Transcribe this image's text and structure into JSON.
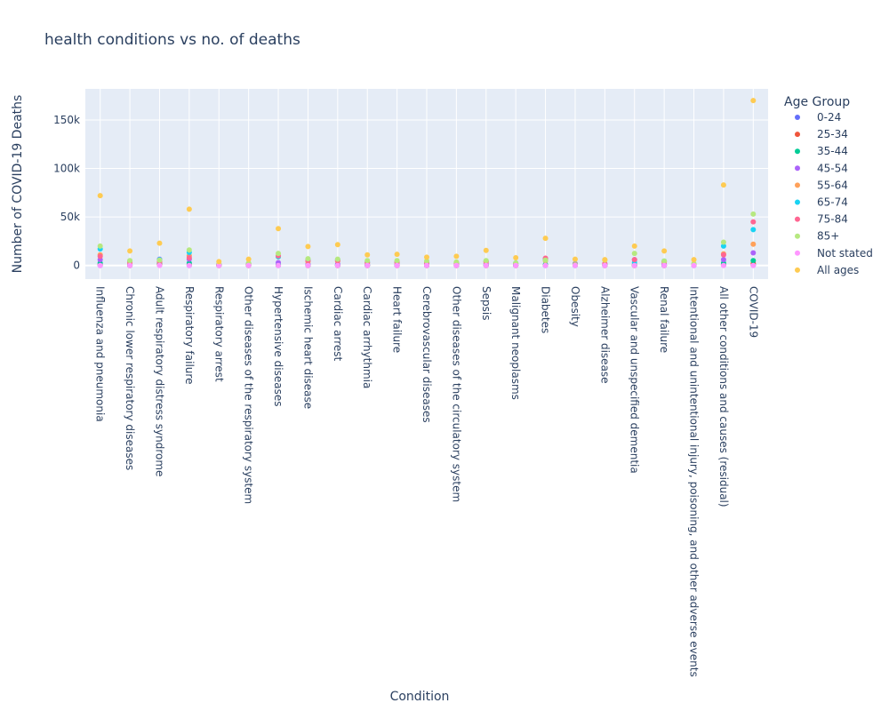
{
  "chart_data": {
    "type": "scatter",
    "title": "health conditions vs no. of deaths",
    "xlabel": "Condition",
    "ylabel": "Number of COVID-19 Deaths",
    "ylim": [
      -14000,
      182000
    ],
    "yticks": [
      0,
      50000,
      100000,
      150000
    ],
    "ytick_labels": [
      "0",
      "50k",
      "100k",
      "150k"
    ],
    "grid": true,
    "legend_title": "Age Group",
    "legend_position": "top-right",
    "categories": [
      "Influenza and pneumonia",
      "Chronic lower respiratory diseases",
      "Adult respiratory distress syndrome",
      "Respiratory failure",
      "Respiratory arrest",
      "Other diseases of the respiratory system",
      "Hypertensive diseases",
      "Ischemic heart disease",
      "Cardiac arrest",
      "Cardiac arrhythmia",
      "Heart failure",
      "Cerebrovascular diseases",
      "Other diseases of the circulatory system",
      "Sepsis",
      "Malignant neoplasms",
      "Diabetes",
      "Obesity",
      "Alzheimer disease",
      "Vascular and unspecified dementia",
      "Renal failure",
      "Intentional and unintentional injury, poisoning, and other adverse events",
      "All other conditions and causes (residual)",
      "COVID-19"
    ],
    "series": [
      {
        "name": "0-24",
        "color": "#636efa",
        "values": [
          0,
          0,
          500,
          0,
          0,
          0,
          0,
          0,
          0,
          0,
          0,
          0,
          0,
          0,
          0,
          0,
          0,
          0,
          0,
          0,
          0,
          300,
          500
        ]
      },
      {
        "name": "25-34",
        "color": "#EF553B",
        "values": [
          1000,
          0,
          1500,
          1000,
          0,
          0,
          300,
          0,
          0,
          0,
          0,
          0,
          0,
          0,
          0,
          300,
          300,
          0,
          0,
          0,
          300,
          1000,
          2000
        ]
      },
      {
        "name": "35-44",
        "color": "#00cc96",
        "values": [
          2500,
          500,
          3000,
          2500,
          300,
          300,
          900,
          300,
          500,
          300,
          300,
          300,
          300,
          500,
          300,
          900,
          900,
          300,
          300,
          300,
          500,
          2500,
          5000
        ]
      },
      {
        "name": "45-54",
        "color": "#ab63fa",
        "values": [
          6000,
          1000,
          6500,
          6500,
          500,
          600,
          3000,
          1500,
          1500,
          900,
          700,
          700,
          800,
          1800,
          800,
          7000,
          1800,
          600,
          6000,
          1500,
          800,
          6000,
          13000
        ]
      },
      {
        "name": "55-64",
        "color": "#FFA15A",
        "values": [
          11000,
          2500,
          3800,
          10000,
          1000,
          1500,
          9000,
          4000,
          4500,
          2500,
          2500,
          1800,
          2000,
          3500,
          2000,
          5000,
          1800,
          800,
          1500,
          3500,
          1500,
          12000,
          22000
        ]
      },
      {
        "name": "65-74",
        "color": "#19d3f3",
        "values": [
          17000,
          4500,
          6000,
          13500,
          1200,
          2000,
          9000,
          5500,
          6000,
          3500,
          3500,
          2500,
          3000,
          4500,
          2500,
          6500,
          1300,
          1200,
          3000,
          4500,
          1500,
          20000,
          37000
        ]
      },
      {
        "name": "75-84",
        "color": "#FF6692",
        "values": [
          9500,
          3500,
          4000,
          8000,
          1200,
          1800,
          10000,
          5000,
          5000,
          3000,
          3500,
          2500,
          2500,
          4000,
          2000,
          7500,
          900,
          2000,
          6000,
          4000,
          1000,
          11000,
          45000
        ]
      },
      {
        "name": "85+",
        "color": "#B6E880",
        "values": [
          20000,
          5000,
          5500,
          16000,
          1600,
          2500,
          12500,
          7000,
          6500,
          5000,
          5000,
          4500,
          3500,
          5000,
          2500,
          5500,
          400,
          5500,
          12500,
          4500,
          1800,
          24000,
          53000
        ]
      },
      {
        "name": "Not stated",
        "color": "#FF97FF",
        "values": [
          0,
          0,
          0,
          0,
          0,
          0,
          0,
          0,
          0,
          0,
          0,
          0,
          0,
          0,
          0,
          0,
          0,
          0,
          0,
          0,
          0,
          0,
          0
        ]
      },
      {
        "name": "All ages",
        "color": "#FECB52",
        "values": [
          72000,
          15000,
          23000,
          58000,
          4000,
          6500,
          38000,
          19500,
          21500,
          11000,
          11500,
          8500,
          9500,
          15500,
          8000,
          28000,
          6500,
          6000,
          20000,
          15000,
          6000,
          83000,
          170000
        ]
      }
    ]
  }
}
